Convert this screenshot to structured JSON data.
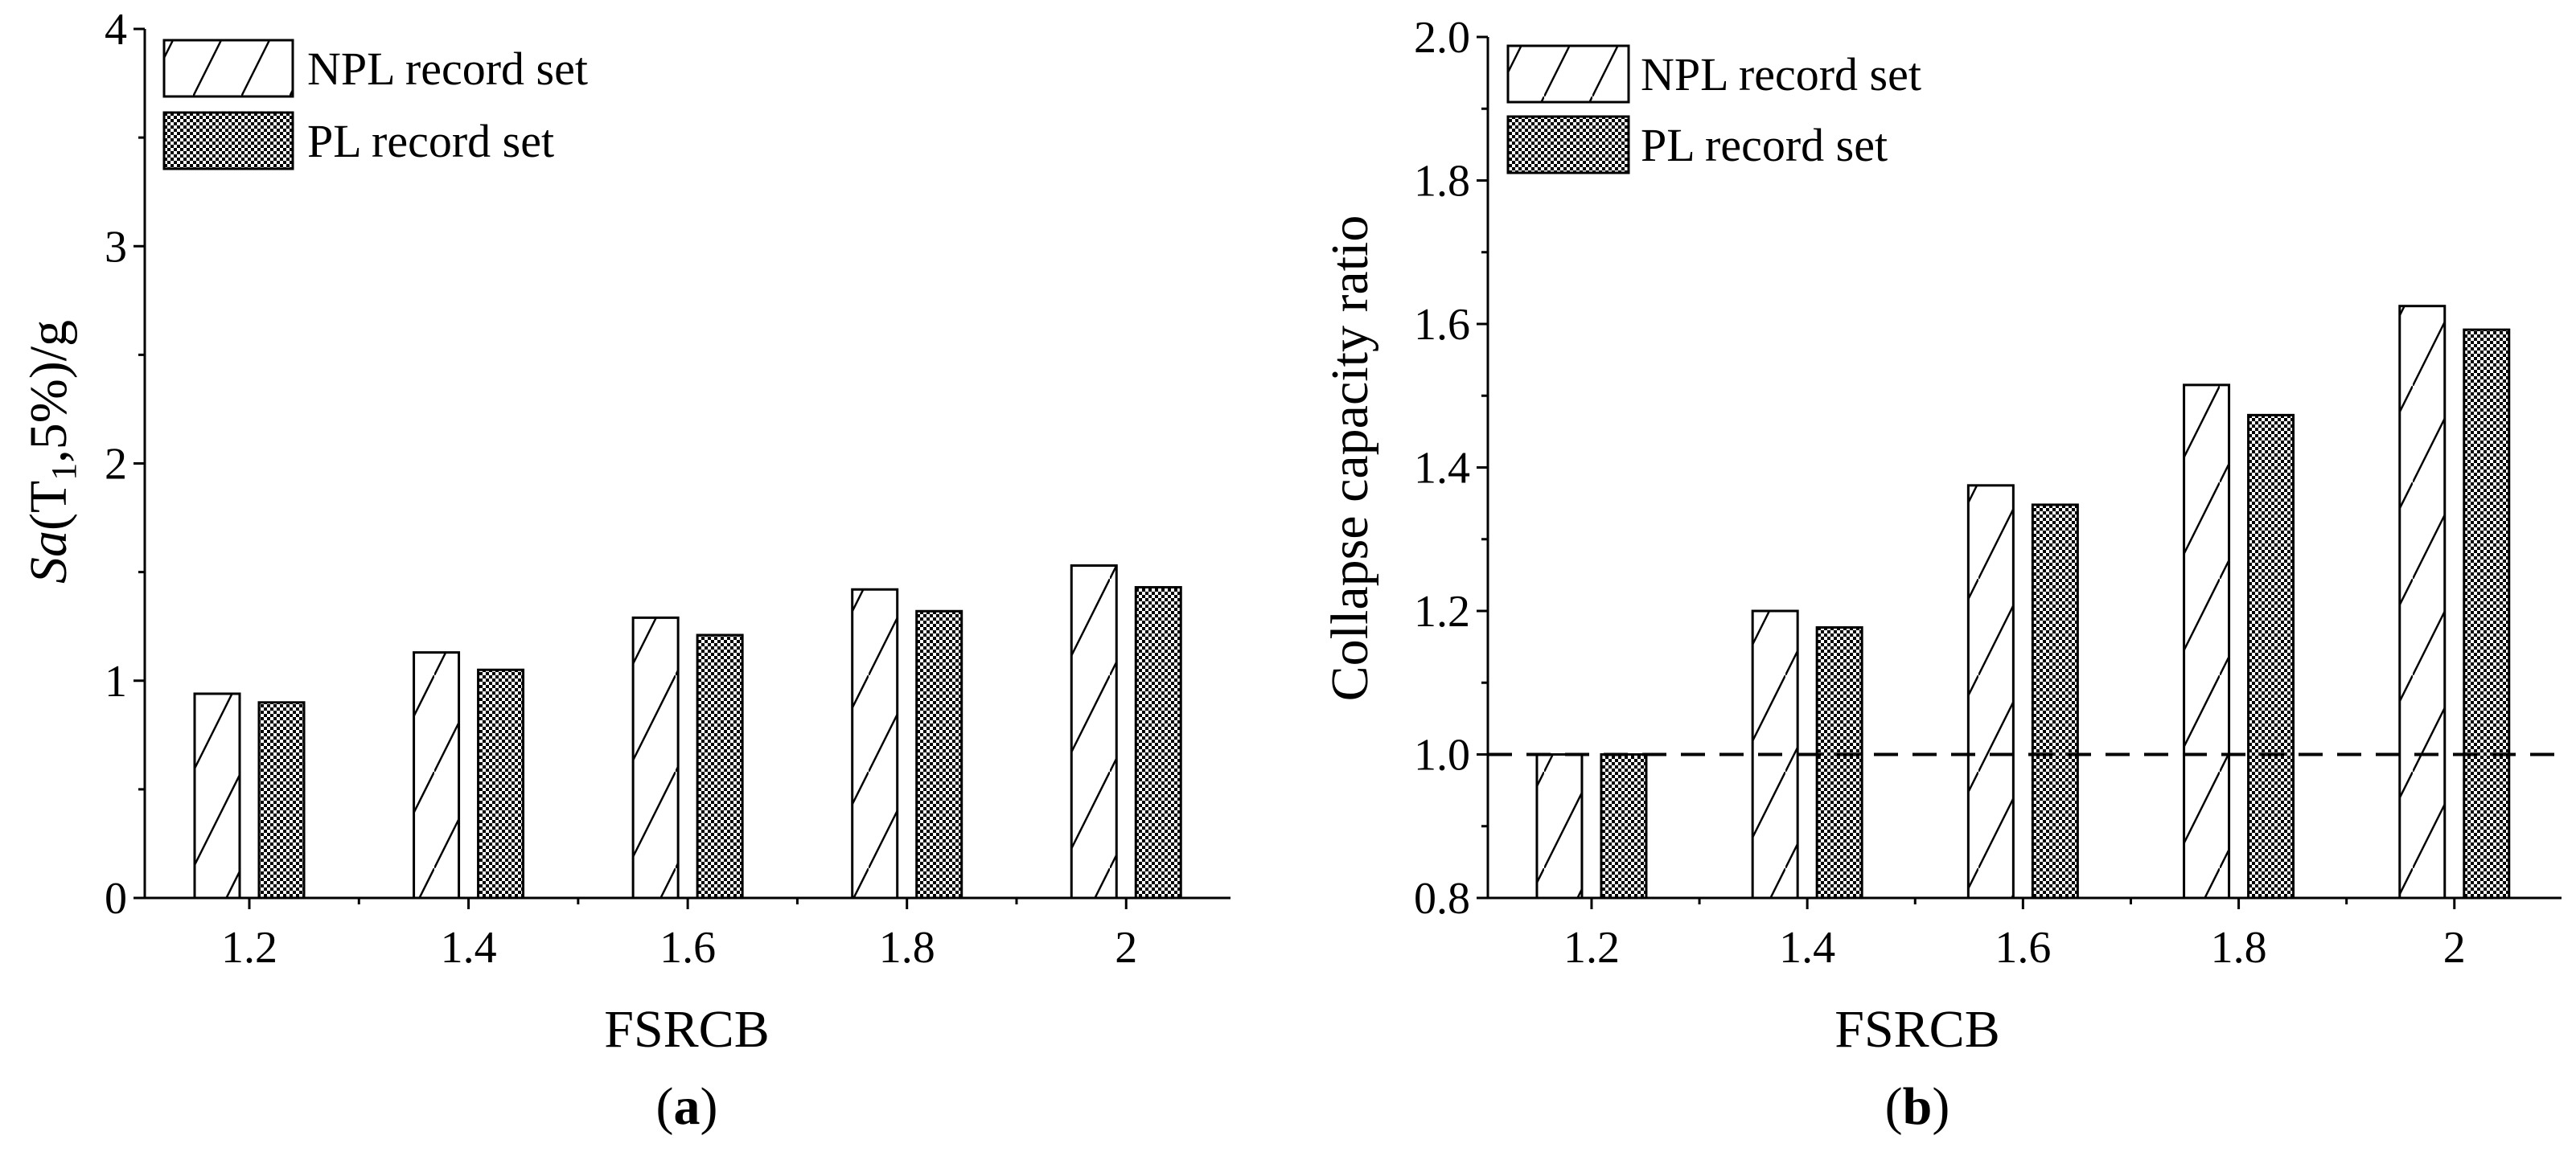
{
  "chart_data": [
    {
      "type": "bar",
      "panel_label": "a",
      "title": "",
      "xlabel": "FSRCB",
      "ylabel": {
        "prefix": "Sa",
        "open": "(T",
        "sub": "1",
        "rest": ",5%)/g"
      },
      "categories": [
        "1.2",
        "1.4",
        "1.6",
        "1.8",
        "2"
      ],
      "ylim": [
        0,
        4
      ],
      "yticks": [
        0,
        1,
        2,
        3,
        4
      ],
      "ytick_labels": [
        "0",
        "1",
        "2",
        "3",
        "4"
      ],
      "legend_position": "top-left",
      "series": [
        {
          "name": "NPL record set",
          "pattern": "hatch",
          "values": [
            0.94,
            1.13,
            1.29,
            1.42,
            1.53
          ]
        },
        {
          "name": "PL record set",
          "pattern": "dots",
          "values": [
            0.9,
            1.05,
            1.21,
            1.32,
            1.43
          ]
        }
      ]
    },
    {
      "type": "bar",
      "panel_label": "b",
      "title": "",
      "xlabel": "FSRCB",
      "ylabel": "Collapse capacity ratio",
      "categories": [
        "1.2",
        "1.4",
        "1.6",
        "1.8",
        "2"
      ],
      "ylim": [
        0.8,
        2.0
      ],
      "yticks": [
        0.8,
        1.0,
        1.2,
        1.4,
        1.6,
        1.8,
        2.0
      ],
      "ytick_labels": [
        "0.8",
        "1.0",
        "1.2",
        "1.4",
        "1.6",
        "1.8",
        "2.0"
      ],
      "reference_line": 1.0,
      "legend_position": "top-left",
      "series": [
        {
          "name": "NPL record set",
          "pattern": "hatch",
          "values": [
            1.0,
            1.2,
            1.375,
            1.515,
            1.625
          ]
        },
        {
          "name": "PL record set",
          "pattern": "dots",
          "values": [
            1.0,
            1.177,
            1.348,
            1.473,
            1.592
          ]
        }
      ]
    }
  ]
}
